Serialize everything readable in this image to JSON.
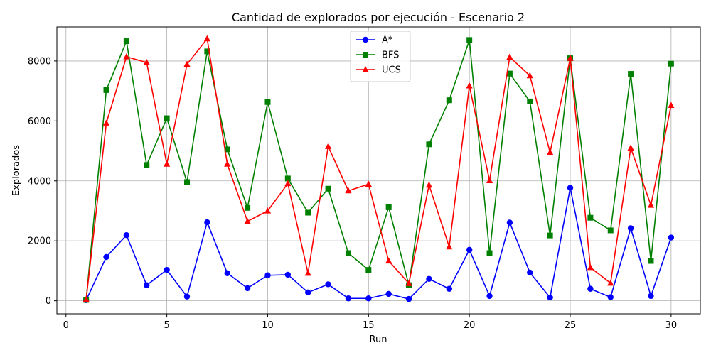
{
  "chart_data": {
    "type": "line",
    "title": "Cantidad de explorados por ejecución - Escenario 2",
    "xlabel": "Run",
    "ylabel": "Explorados",
    "xlim": [
      -0.45,
      31.45
    ],
    "ylim": [
      -435,
      9135
    ],
    "xticks": [
      0,
      5,
      10,
      15,
      20,
      25,
      30
    ],
    "yticks": [
      0,
      2000,
      4000,
      6000,
      8000
    ],
    "grid": true,
    "legend_position": "top-center",
    "x": [
      1,
      2,
      3,
      4,
      5,
      6,
      7,
      8,
      9,
      10,
      11,
      12,
      13,
      14,
      15,
      16,
      17,
      18,
      19,
      20,
      21,
      22,
      23,
      24,
      25,
      26,
      27,
      28,
      29,
      30
    ],
    "series": [
      {
        "name": "A*",
        "color": "#0000ff",
        "marker": "circle",
        "values": [
          20,
          1460,
          2190,
          520,
          1030,
          140,
          2620,
          920,
          420,
          850,
          870,
          280,
          550,
          80,
          80,
          230,
          60,
          730,
          400,
          1700,
          160,
          2610,
          940,
          110,
          3770,
          400,
          120,
          2420,
          160,
          2110
        ]
      },
      {
        "name": "BFS",
        "color": "#008000",
        "marker": "square",
        "values": [
          30,
          7030,
          8660,
          4530,
          6090,
          3960,
          8320,
          5050,
          3100,
          6630,
          4080,
          2940,
          3740,
          1590,
          1030,
          3120,
          520,
          5220,
          6690,
          8700,
          1590,
          7580,
          6650,
          2180,
          8090,
          2770,
          2350,
          7570,
          1330,
          7910
        ]
      },
      {
        "name": "UCS",
        "color": "#ff0000",
        "marker": "triangle",
        "values": [
          40,
          5930,
          8140,
          7950,
          4560,
          7890,
          8740,
          4560,
          2650,
          3000,
          3910,
          920,
          5150,
          3670,
          3890,
          1330,
          580,
          3860,
          1800,
          7170,
          4010,
          8130,
          7510,
          4950,
          8090,
          1110,
          590,
          5100,
          3190,
          6520
        ]
      }
    ]
  }
}
